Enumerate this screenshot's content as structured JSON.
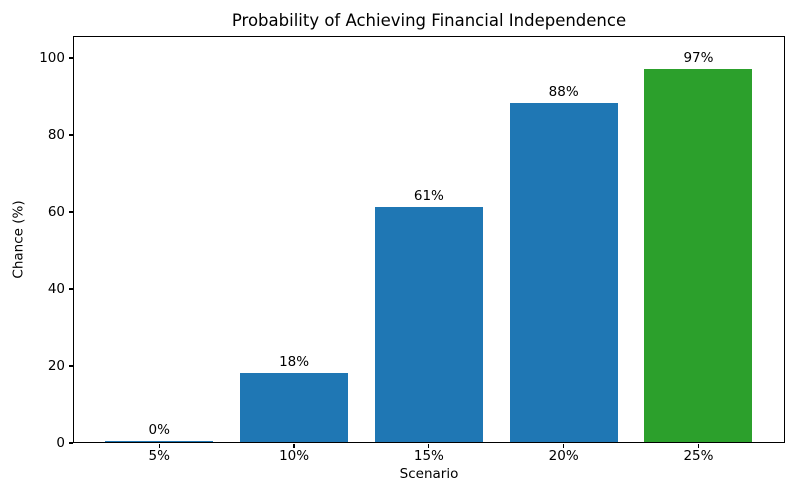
{
  "chart_data": {
    "type": "bar",
    "title": "Probability of Achieving Financial Independence",
    "xlabel": "Scenario",
    "ylabel": "Chance (%)",
    "categories": [
      "5%",
      "10%",
      "15%",
      "20%",
      "25%"
    ],
    "values": [
      0,
      18,
      61,
      88,
      97
    ],
    "bar_labels": [
      "0%",
      "18%",
      "61%",
      "88%",
      "97%"
    ],
    "bar_colors": [
      "#1f77b4",
      "#1f77b4",
      "#1f77b4",
      "#1f77b4",
      "#2ca02c"
    ],
    "default_bar_color": "#1f77b4",
    "highlight_color": "#2ca02c",
    "yticks": [
      0,
      20,
      40,
      60,
      80,
      100
    ],
    "ylim": [
      0,
      105.7
    ],
    "grid": false,
    "legend": null,
    "background_color": "#ffffff",
    "text_color": "#000000"
  }
}
